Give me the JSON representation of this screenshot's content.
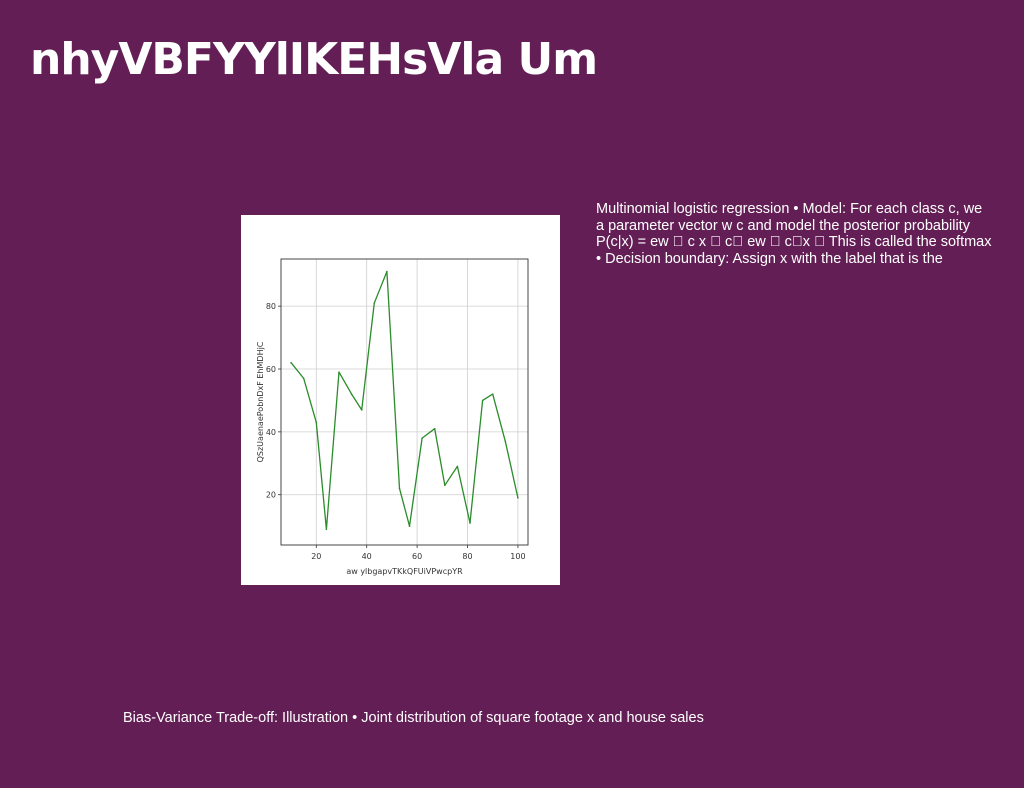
{
  "slide": {
    "title": "nhyVBFYYlIKEHsVla Um",
    "text_lines": [
      "Multinomial logistic regression • Model: For each class c, we",
      "a parameter vector w c and model the posterior probability",
      "P(c|x) = ew ⃞ c x ⃞ c⃞ ew ⃞ c⃞x ⃞ This is called the softmax",
      "• Decision boundary: Assign x with the label that is the"
    ],
    "footer": "Bias-Variance Trade-off: Illustration • Joint distribution of square footage x and house sales",
    "background_color": "#631f55"
  },
  "chart_data": {
    "type": "line",
    "xlabel": "aw ylbgapvTKkQFUiVPwcpYR",
    "ylabel": "QSzUaenaePobnDxF EhMDHjC",
    "xlim": [
      6,
      104
    ],
    "ylim": [
      4,
      95
    ],
    "xticks": [
      20,
      40,
      60,
      80,
      100
    ],
    "yticks": [
      20,
      40,
      60,
      80
    ],
    "grid": true,
    "line_color": "#2a8c2a",
    "series": [
      {
        "x": [
          10,
          15,
          20,
          24,
          29,
          34,
          38,
          43,
          48,
          53,
          57,
          62,
          67,
          71,
          76,
          81,
          86,
          90,
          95,
          100
        ],
        "values": [
          62,
          57,
          43,
          9,
          59,
          52,
          47,
          81,
          91,
          22,
          10,
          38,
          41,
          23,
          29,
          11,
          50,
          52,
          37,
          19
        ]
      }
    ]
  }
}
